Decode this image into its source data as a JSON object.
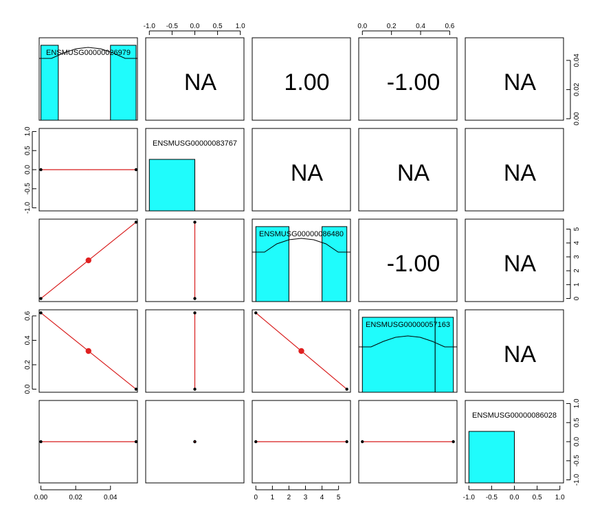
{
  "chart_data": {
    "type": "pairs",
    "variables": [
      "ENSMUSG00000026979",
      "ENSMUSG00000083767",
      "ENSMUSG00000086480",
      "ENSMUSG00000057163",
      "ENSMUSG00000086028"
    ],
    "values": [
      [
        0,
        0.0547
      ],
      [
        0,
        0
      ],
      [
        0,
        5.5
      ],
      [
        0.625,
        0
      ],
      [
        0,
        0
      ]
    ],
    "correlations": [
      [
        "",
        "NA",
        "1.00",
        "-1.00",
        "NA"
      ],
      [
        "",
        "",
        "NA",
        "NA",
        "NA"
      ],
      [
        "",
        "",
        "",
        "-1.00",
        "NA"
      ],
      [
        "",
        "",
        "",
        "",
        "NA"
      ],
      [
        "",
        "",
        "",
        "",
        ""
      ]
    ],
    "axes": [
      {
        "range": [
          -0.001,
          0.0555
        ],
        "ticks": [
          0,
          0.02,
          0.04
        ],
        "labels": [
          "0.00",
          "0.02",
          "0.04"
        ]
      },
      {
        "range": [
          -1.08,
          1.08
        ],
        "ticks": [
          -1,
          -0.5,
          0,
          0.5,
          1
        ],
        "labels": [
          "-1.0",
          "-0.5",
          "0.0",
          "0.5",
          "1.0"
        ]
      },
      {
        "range": [
          -0.22,
          5.72
        ],
        "ticks": [
          0,
          1,
          2,
          3,
          4,
          5
        ],
        "labels": [
          "0",
          "1",
          "2",
          "3",
          "4",
          "5"
        ]
      },
      {
        "range": [
          -0.025,
          0.65
        ],
        "ticks": [
          0,
          0.2,
          0.4,
          0.6
        ],
        "labels": [
          "0.0",
          "0.2",
          "0.4",
          "0.6"
        ]
      },
      {
        "range": [
          -1.08,
          1.08
        ],
        "ticks": [
          -1,
          -0.5,
          0,
          0.5,
          1
        ],
        "labels": [
          "-1.0",
          "-0.5",
          "0.0",
          "0.5",
          "1.0"
        ]
      }
    ],
    "histograms": [
      {
        "bins": [
          [
            0,
            0.01,
            1
          ],
          [
            0.04,
            0.0547,
            1
          ]
        ],
        "max": 1.1,
        "density": [
          0.45,
          0.45,
          0.49,
          0.52,
          0.53,
          0.52,
          0.49,
          0.45,
          0.45
        ]
      },
      {
        "bins": [
          [
            -1,
            0,
            1
          ]
        ],
        "max": 1.6,
        "density": null
      },
      {
        "bins": [
          [
            0,
            2,
            1
          ],
          [
            4,
            5.5,
            1
          ]
        ],
        "max": 1.1,
        "density": [
          0.36,
          0.36,
          0.42,
          0.45,
          0.46,
          0.45,
          0.42,
          0.36,
          0.36
        ]
      },
      {
        "bins": [
          [
            0,
            0.5,
            1
          ],
          [
            0.5,
            0.625,
            1
          ]
        ],
        "max": 1.1,
        "density": [
          0.33,
          0.33,
          0.37,
          0.4,
          0.41,
          0.4,
          0.37,
          0.33,
          0.33
        ]
      },
      {
        "bins": [
          [
            -1,
            0,
            1
          ]
        ],
        "max": 1.6,
        "density": null
      }
    ],
    "colors": {
      "hist_fill": "#1ffcfc",
      "fit_line": "#d81b1b",
      "center_point": "#e02020",
      "points": "#000000"
    }
  }
}
